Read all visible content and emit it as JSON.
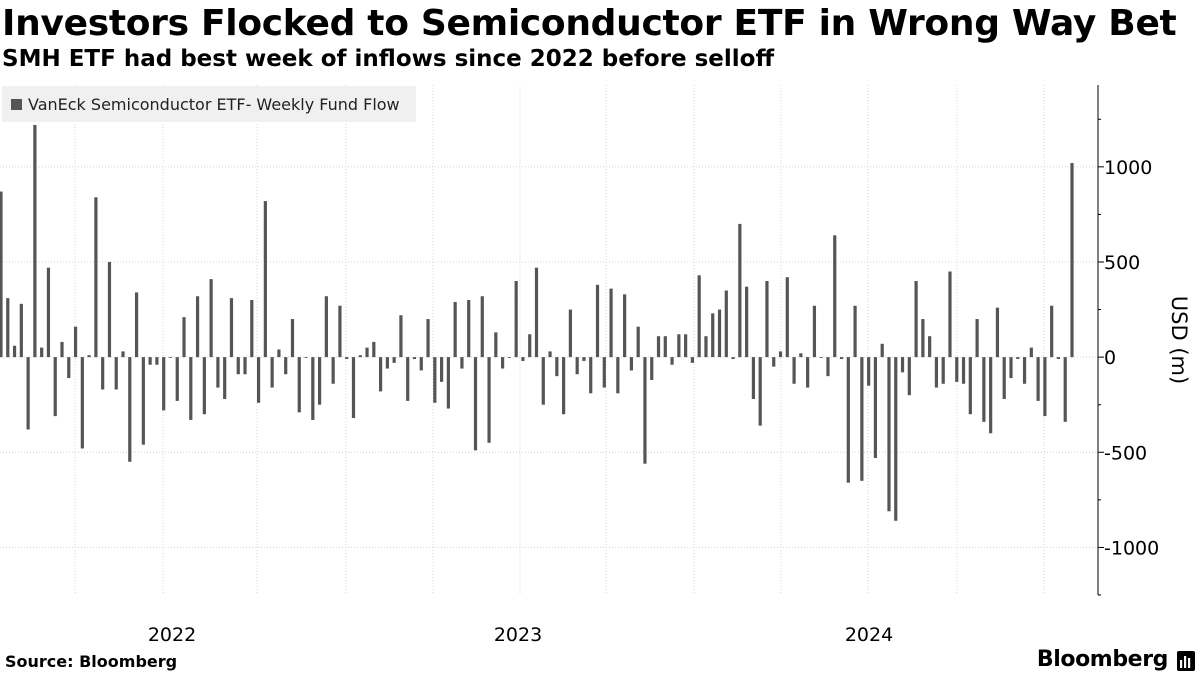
{
  "title": "Investors Flocked to Semiconductor ETF in Wrong Way Bet",
  "subtitle": "SMH ETF had best week of inflows since 2022 before selloff",
  "source": "Source: Bloomberg",
  "brand": "Bloomberg",
  "colors": {
    "bar": "#555555",
    "grid": "#d4d4d4",
    "legend_bg": "#f0f0f0"
  },
  "chart_data": {
    "type": "bar",
    "title": "Investors Flocked to Semiconductor ETF in Wrong Way Bet",
    "legend": [
      "VanEck Semiconductor ETF- Weekly Fund Flow"
    ],
    "legend_position": "top-left",
    "ylabel": "USD (m)",
    "xlabel": "",
    "ylim": [
      -1250,
      1430
    ],
    "yticks": [
      -1000,
      -500,
      0,
      500,
      1000
    ],
    "ytick_labels": [
      "-1000",
      "-500",
      "0",
      "500",
      "1000"
    ],
    "x_labels": [
      "2022",
      "2023",
      "2024"
    ],
    "grid": true,
    "values": [
      870,
      310,
      60,
      280,
      -380,
      1220,
      50,
      470,
      -310,
      80,
      -110,
      160,
      -480,
      10,
      840,
      -170,
      500,
      -170,
      30,
      -550,
      340,
      -460,
      -40,
      -40,
      -280,
      0,
      -230,
      210,
      -330,
      320,
      -300,
      410,
      -160,
      -220,
      310,
      -90,
      -90,
      300,
      -240,
      820,
      -160,
      40,
      -90,
      200,
      -290,
      0,
      -330,
      -250,
      320,
      -140,
      270,
      -10,
      -320,
      10,
      50,
      80,
      -180,
      -60,
      -30,
      220,
      -230,
      -10,
      -70,
      200,
      -240,
      -130,
      -270,
      290,
      -60,
      300,
      -490,
      320,
      -450,
      130,
      -60,
      0,
      400,
      -20,
      120,
      470,
      -250,
      30,
      -100,
      -300,
      250,
      -90,
      -20,
      -190,
      380,
      -160,
      360,
      -190,
      330,
      -70,
      160,
      -560,
      -120,
      110,
      110,
      -40,
      120,
      120,
      -30,
      430,
      110,
      230,
      250,
      350,
      -10,
      700,
      370,
      -220,
      -360,
      400,
      -50,
      30,
      420,
      -140,
      20,
      -160,
      270,
      0,
      -100,
      640,
      -10,
      -660,
      270,
      -650,
      -150,
      -530,
      70,
      -810,
      -860,
      -80,
      -200,
      400,
      200,
      110,
      -160,
      -140,
      450,
      -130,
      -140,
      -300,
      200,
      -340,
      -400,
      260,
      -220,
      -110,
      -10,
      -140,
      50,
      -230,
      -310,
      270,
      -10,
      -340,
      1020
    ]
  }
}
